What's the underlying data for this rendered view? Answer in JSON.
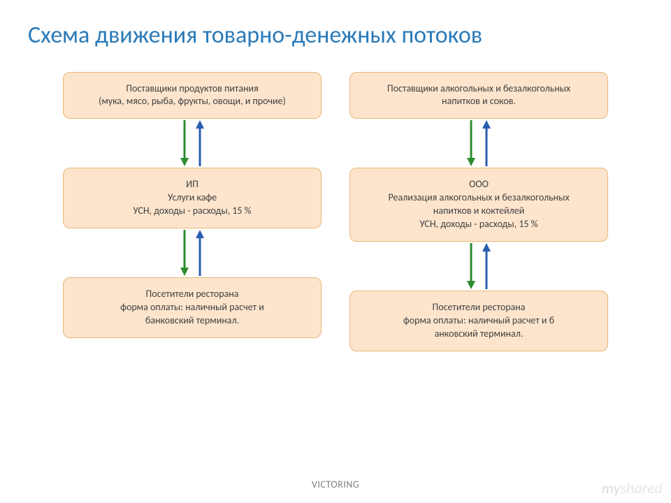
{
  "title": "Схема движения товарно-денежных потоков",
  "title_color": "#2a7ab8",
  "title_fontsize": 34,
  "footer": "VICTORING",
  "watermark": {
    "part1": "my",
    "part2": "shared"
  },
  "box_style": {
    "background": "#fde5cd",
    "border_color": "#e8b67a",
    "border_width": 1,
    "text_color": "#404040",
    "radius": 10,
    "fontsize": 14
  },
  "arrow_colors": {
    "down": "#2e8b2e",
    "up": "#2a5db0"
  },
  "arrow_stroke_width": 3,
  "columns": [
    {
      "boxes": [
        {
          "lines": [
            "Поставщики продуктов питания",
            "(мука, мясо, рыба, фрукты, овощи, и прочие)"
          ]
        },
        {
          "lines": [
            "ИП",
            "Услуги кафе",
            "УСН, доходы - расходы, 15 %"
          ]
        },
        {
          "lines": [
            "Посетители ресторана",
            "форма оплаты: наличный расчет и",
            "банковский терминал."
          ]
        }
      ]
    },
    {
      "boxes": [
        {
          "lines": [
            "Поставщики алкогольных и безалкогольных",
            "напитков и соков."
          ]
        },
        {
          "lines": [
            "ООО",
            "Реализация алкогольных и безалкогольных",
            "напитков и коктейлей",
            "УСН, доходы - расходы, 15 %"
          ]
        },
        {
          "lines": [
            "Посетители ресторана",
            "форма оплаты: наличный расчет и б",
            "анковский терминал."
          ]
        }
      ]
    }
  ]
}
